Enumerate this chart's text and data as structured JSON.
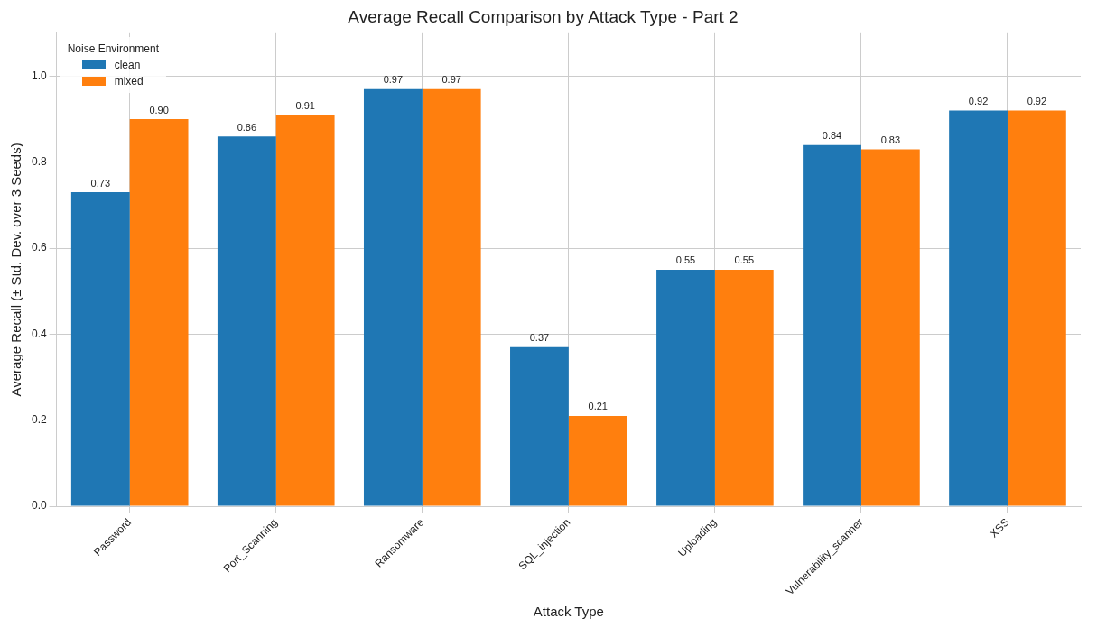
{
  "chart_data": {
    "type": "bar",
    "title": "Average Recall Comparison by Attack Type - Part 2",
    "xlabel": "Attack Type",
    "ylabel": "Average Recall (± Std. Dev. over 3 Seeds)",
    "legend_title": "Noise Environment",
    "categories": [
      "Password",
      "Port_Scanning",
      "Ransomware",
      "SQL_injection",
      "Uploading",
      "Vulnerability_scanner",
      "XSS"
    ],
    "series": [
      {
        "name": "clean",
        "color": "#1f77b4",
        "values": [
          0.73,
          0.86,
          0.97,
          0.37,
          0.55,
          0.84,
          0.92
        ]
      },
      {
        "name": "mixed",
        "color": "#ff7f0e",
        "values": [
          0.9,
          0.91,
          0.97,
          0.21,
          0.55,
          0.83,
          0.92
        ]
      }
    ],
    "ylim": [
      0,
      1.1
    ],
    "yticks": [
      {
        "value": 0,
        "label": "0.0"
      },
      {
        "value": 0.2,
        "label": "0.2"
      },
      {
        "value": 0.4,
        "label": "0.4"
      },
      {
        "value": 0.6,
        "label": "0.6"
      },
      {
        "value": 0.8,
        "label": "0.8"
      },
      {
        "value": 1,
        "label": "1.0"
      }
    ],
    "grid": true,
    "legend": "top left",
    "value_labels": [
      [
        "0.73",
        "0.86",
        "0.97",
        "0.37",
        "0.55",
        "0.84",
        "0.92"
      ],
      [
        "0.90",
        "0.91",
        "0.97",
        "0.21",
        "0.55",
        "0.83",
        "0.92"
      ]
    ]
  }
}
